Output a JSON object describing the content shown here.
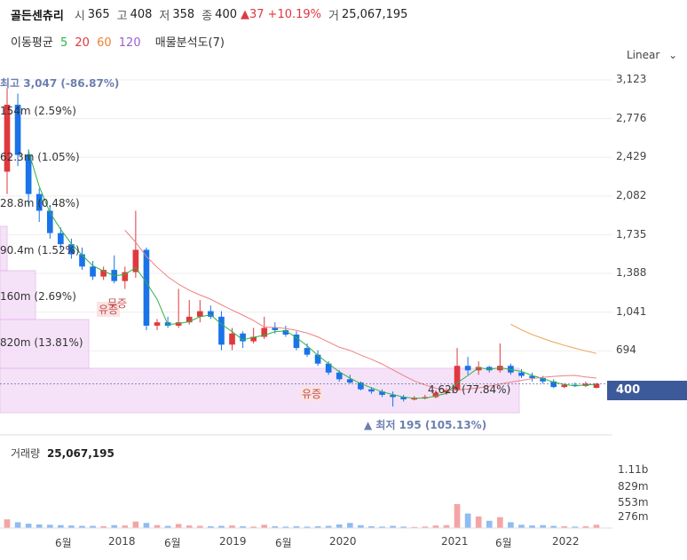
{
  "header": {
    "name": "골든센츄리",
    "open_label": "시",
    "open": "365",
    "high_label": "고",
    "high": "408",
    "low_label": "저",
    "low": "358",
    "close_label": "종",
    "close": "400",
    "change": "▲37",
    "change_pct": "+10.19%",
    "volume_label": "거",
    "volume": "25,067,195"
  },
  "ma_legend": {
    "label": "이동평균",
    "p5": "5",
    "p20": "20",
    "p60": "60",
    "p120": "120",
    "analysis": "매물분석도(7)"
  },
  "scale_mode": "Linear",
  "colors": {
    "up": "#e0383e",
    "down": "#1a73e8",
    "ma5": "#2bb540",
    "ma20": "#f08080",
    "ma60": "#f0a050",
    "ma120": "#9c5fd1",
    "highlight": "#3c5a99",
    "profile": "#f3dcf7"
  },
  "chart_data": {
    "type": "candlestick",
    "y_axis_ticks": [
      "3,123",
      "2,776",
      "2,429",
      "2,082",
      "1,735",
      "1,388",
      "1,041",
      "694",
      "400"
    ],
    "ylim": [
      180,
      3123
    ],
    "x_axis_ticks": [
      "6월",
      "2018",
      "6월",
      "2019",
      "6월",
      "2020",
      "2021",
      "6월",
      "2022"
    ],
    "current_price": "400",
    "annotations": {
      "high_label": "최고 3,047 (-86.87%)",
      "low_label": "▲ 최저 195 (105.13%)",
      "events": [
        "유증",
        "무증",
        "유증"
      ]
    },
    "volume_profile": [
      "154m (2.59%)",
      "62.3m (1.05%)",
      "28.8m (0.48%)",
      "90.4m (1.52%)",
      "160m (2.69%)",
      "820m (13.81%)",
      "4.62b (77.84%)"
    ],
    "volume_title": "거래량",
    "volume_value": "25,067,195",
    "volume_ticks": [
      "1.11b",
      "829m",
      "553m",
      "276m"
    ],
    "candles": [
      {
        "o": 2300,
        "h": 3047,
        "l": 2100,
        "c": 2900,
        "v": 120
      },
      {
        "o": 2900,
        "h": 3000,
        "l": 2350,
        "c": 2450,
        "v": 80
      },
      {
        "o": 2450,
        "h": 2500,
        "l": 2000,
        "c": 2100,
        "v": 60
      },
      {
        "o": 2100,
        "h": 2150,
        "l": 1850,
        "c": 1950,
        "v": 50
      },
      {
        "o": 1950,
        "h": 2000,
        "l": 1700,
        "c": 1750,
        "v": 45
      },
      {
        "o": 1750,
        "h": 1800,
        "l": 1600,
        "c": 1650,
        "v": 40
      },
      {
        "o": 1650,
        "h": 1700,
        "l": 1520,
        "c": 1560,
        "v": 35
      },
      {
        "o": 1560,
        "h": 1620,
        "l": 1420,
        "c": 1450,
        "v": 30
      },
      {
        "o": 1450,
        "h": 1500,
        "l": 1330,
        "c": 1360,
        "v": 30
      },
      {
        "o": 1360,
        "h": 1450,
        "l": 1330,
        "c": 1420,
        "v": 25
      },
      {
        "o": 1420,
        "h": 1550,
        "l": 1300,
        "c": 1320,
        "v": 40
      },
      {
        "o": 1320,
        "h": 1450,
        "l": 1250,
        "c": 1400,
        "v": 35
      },
      {
        "o": 1400,
        "h": 1950,
        "l": 1350,
        "c": 1600,
        "v": 90
      },
      {
        "o": 1600,
        "h": 1620,
        "l": 880,
        "c": 920,
        "v": 70
      },
      {
        "o": 920,
        "h": 980,
        "l": 880,
        "c": 950,
        "v": 40
      },
      {
        "o": 950,
        "h": 1000,
        "l": 900,
        "c": 920,
        "v": 30
      },
      {
        "o": 920,
        "h": 1250,
        "l": 900,
        "c": 950,
        "v": 55
      },
      {
        "o": 950,
        "h": 1150,
        "l": 930,
        "c": 1000,
        "v": 35
      },
      {
        "o": 1000,
        "h": 1150,
        "l": 950,
        "c": 1050,
        "v": 30
      },
      {
        "o": 1050,
        "h": 1100,
        "l": 980,
        "c": 1000,
        "v": 25
      },
      {
        "o": 1000,
        "h": 1050,
        "l": 700,
        "c": 750,
        "v": 30
      },
      {
        "o": 750,
        "h": 900,
        "l": 700,
        "c": 850,
        "v": 35
      },
      {
        "o": 850,
        "h": 870,
        "l": 720,
        "c": 780,
        "v": 25
      },
      {
        "o": 780,
        "h": 900,
        "l": 760,
        "c": 820,
        "v": 20
      },
      {
        "o": 820,
        "h": 1000,
        "l": 800,
        "c": 900,
        "v": 45
      },
      {
        "o": 900,
        "h": 950,
        "l": 850,
        "c": 880,
        "v": 25
      },
      {
        "o": 880,
        "h": 920,
        "l": 820,
        "c": 840,
        "v": 20
      },
      {
        "o": 840,
        "h": 870,
        "l": 700,
        "c": 720,
        "v": 25
      },
      {
        "o": 720,
        "h": 760,
        "l": 640,
        "c": 660,
        "v": 20
      },
      {
        "o": 660,
        "h": 700,
        "l": 560,
        "c": 580,
        "v": 25
      },
      {
        "o": 580,
        "h": 600,
        "l": 480,
        "c": 500,
        "v": 30
      },
      {
        "o": 500,
        "h": 520,
        "l": 420,
        "c": 440,
        "v": 50
      },
      {
        "o": 440,
        "h": 480,
        "l": 400,
        "c": 410,
        "v": 70
      },
      {
        "o": 410,
        "h": 420,
        "l": 340,
        "c": 350,
        "v": 40
      },
      {
        "o": 350,
        "h": 370,
        "l": 310,
        "c": 330,
        "v": 25
      },
      {
        "o": 330,
        "h": 350,
        "l": 280,
        "c": 300,
        "v": 20
      },
      {
        "o": 300,
        "h": 330,
        "l": 195,
        "c": 280,
        "v": 30
      },
      {
        "o": 280,
        "h": 300,
        "l": 240,
        "c": 260,
        "v": 20
      },
      {
        "o": 260,
        "h": 290,
        "l": 250,
        "c": 270,
        "v": 15
      },
      {
        "o": 270,
        "h": 300,
        "l": 260,
        "c": 280,
        "v": 20
      },
      {
        "o": 280,
        "h": 340,
        "l": 270,
        "c": 320,
        "v": 35
      },
      {
        "o": 320,
        "h": 360,
        "l": 300,
        "c": 340,
        "v": 40
      },
      {
        "o": 340,
        "h": 720,
        "l": 330,
        "c": 560,
        "v": 330
      },
      {
        "o": 560,
        "h": 640,
        "l": 480,
        "c": 520,
        "v": 200
      },
      {
        "o": 520,
        "h": 600,
        "l": 480,
        "c": 550,
        "v": 160
      },
      {
        "o": 550,
        "h": 560,
        "l": 500,
        "c": 520,
        "v": 100
      },
      {
        "o": 520,
        "h": 760,
        "l": 500,
        "c": 560,
        "v": 150
      },
      {
        "o": 560,
        "h": 580,
        "l": 480,
        "c": 500,
        "v": 80
      },
      {
        "o": 500,
        "h": 530,
        "l": 450,
        "c": 470,
        "v": 45
      },
      {
        "o": 470,
        "h": 500,
        "l": 420,
        "c": 450,
        "v": 35
      },
      {
        "o": 450,
        "h": 470,
        "l": 400,
        "c": 420,
        "v": 40
      },
      {
        "o": 420,
        "h": 440,
        "l": 360,
        "c": 370,
        "v": 30
      },
      {
        "o": 370,
        "h": 400,
        "l": 360,
        "c": 390,
        "v": 25
      },
      {
        "o": 390,
        "h": 410,
        "l": 370,
        "c": 380,
        "v": 20
      },
      {
        "o": 380,
        "h": 420,
        "l": 370,
        "c": 400,
        "v": 25
      },
      {
        "o": 363,
        "h": 408,
        "l": 358,
        "c": 400,
        "v": 45
      }
    ]
  }
}
